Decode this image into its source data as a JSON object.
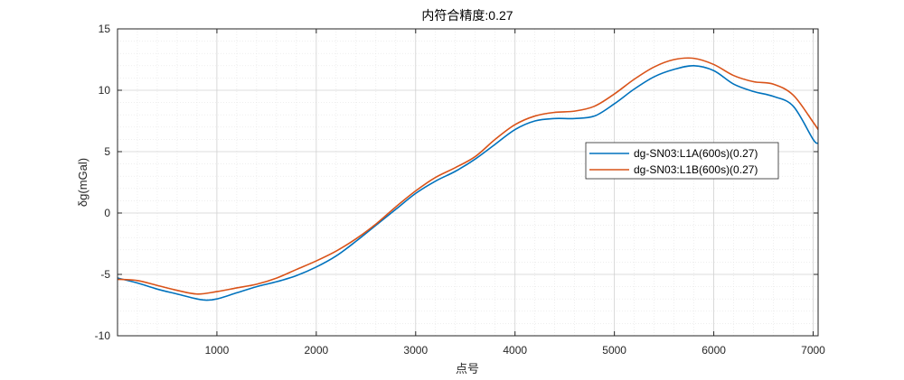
{
  "chart_data": {
    "type": "line",
    "title": "内符合精度:0.27",
    "xlabel": "点号",
    "ylabel": "δg(mGal)",
    "xlim": [
      0,
      7050
    ],
    "ylim": [
      -10,
      15
    ],
    "x_ticks": [
      1000,
      2000,
      3000,
      4000,
      5000,
      6000,
      7000
    ],
    "y_ticks": [
      -10,
      -5,
      0,
      5,
      10,
      15
    ],
    "grid": true,
    "minor_grid": true,
    "legend_position": "center-right",
    "series": [
      {
        "name": "dg-SN03:L1A(600s)(0.27)",
        "color": "#0072BD",
        "x": [
          0,
          200,
          400,
          600,
          800,
          900,
          1000,
          1200,
          1400,
          1600,
          1800,
          2000,
          2200,
          2400,
          2600,
          2800,
          3000,
          3200,
          3400,
          3600,
          3800,
          4000,
          4200,
          4400,
          4600,
          4800,
          5000,
          5200,
          5400,
          5600,
          5800,
          6000,
          6200,
          6400,
          6600,
          6800,
          7000,
          7050
        ],
        "y": [
          -5.3,
          -5.7,
          -6.2,
          -6.6,
          -7.0,
          -7.1,
          -7.0,
          -6.5,
          -6.0,
          -5.6,
          -5.1,
          -4.4,
          -3.5,
          -2.3,
          -1.0,
          0.3,
          1.6,
          2.6,
          3.4,
          4.4,
          5.6,
          6.8,
          7.5,
          7.7,
          7.7,
          7.9,
          8.9,
          10.1,
          11.1,
          11.7,
          12.0,
          11.6,
          10.5,
          9.9,
          9.5,
          8.7,
          6.0,
          5.7
        ]
      },
      {
        "name": "dg-SN03:L1B(600s)(0.27)",
        "color": "#D95319",
        "x": [
          0,
          200,
          400,
          600,
          800,
          1000,
          1200,
          1400,
          1600,
          1800,
          2000,
          2200,
          2400,
          2600,
          2800,
          3000,
          3200,
          3400,
          3600,
          3800,
          4000,
          4200,
          4400,
          4600,
          4800,
          5000,
          5200,
          5400,
          5600,
          5800,
          6000,
          6200,
          6400,
          6600,
          6800,
          7000,
          7050
        ],
        "y": [
          -5.4,
          -5.5,
          -5.9,
          -6.3,
          -6.6,
          -6.4,
          -6.1,
          -5.8,
          -5.3,
          -4.6,
          -3.9,
          -3.1,
          -2.1,
          -0.9,
          0.5,
          1.8,
          2.9,
          3.7,
          4.6,
          6.0,
          7.2,
          7.9,
          8.2,
          8.3,
          8.7,
          9.7,
          10.9,
          11.9,
          12.5,
          12.6,
          12.1,
          11.2,
          10.7,
          10.5,
          9.6,
          7.4,
          6.8
        ]
      }
    ]
  }
}
